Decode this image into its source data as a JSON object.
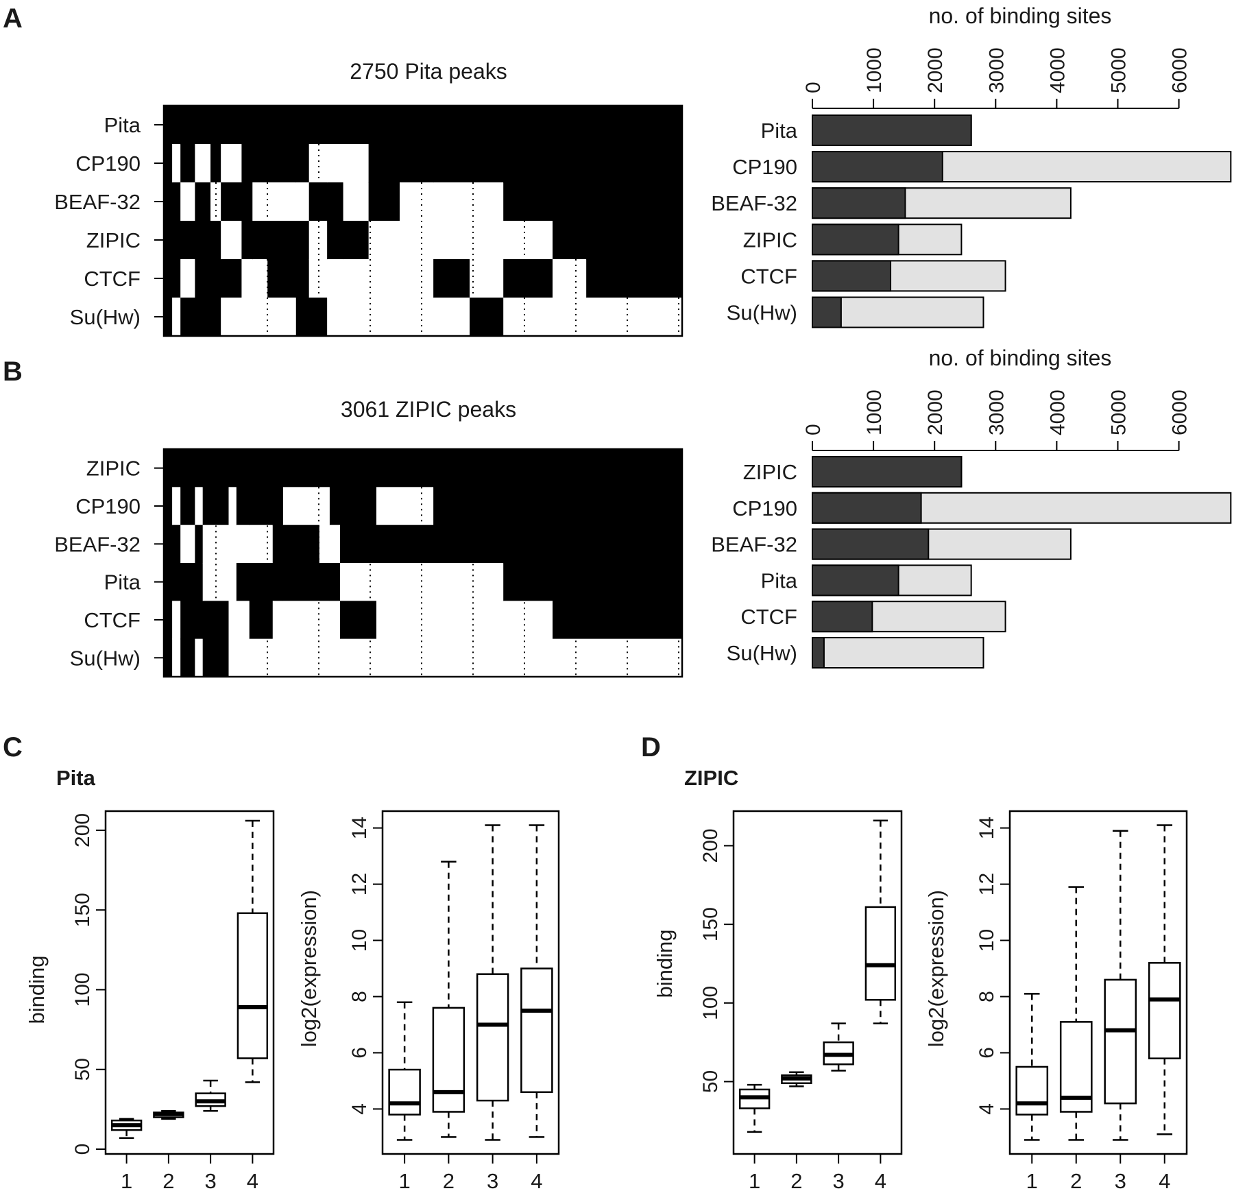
{
  "panels": {
    "A": {
      "label": "A",
      "heatmap_title": "2750 Pita peaks",
      "bar_axis_label": "no. of binding sites"
    },
    "B": {
      "label": "B",
      "heatmap_title": "3061 ZIPIC peaks",
      "bar_axis_label": "no. of binding sites"
    },
    "C": {
      "label": "C",
      "title": "Pita"
    },
    "D": {
      "label": "D",
      "title": "ZIPIC"
    }
  },
  "colors": {
    "overlap": "#3a3a3a",
    "total": "#e2e2e2",
    "heatmap_on": "#000000",
    "heatmap_off": "#ffffff"
  },
  "chart_data": [
    {
      "id": "A-heatmap",
      "type": "heatmap",
      "title": "2750 Pita peaks",
      "rows": [
        "Pita",
        "CP190",
        "BEAF-32",
        "ZIPIC",
        "CTCF",
        "Su(Hw)"
      ],
      "values": [
        0,
        1
      ],
      "column_blocks_fraction": [
        {
          "from": 0.0,
          "to": 0.016,
          "on": [
            1,
            1,
            1,
            1,
            1,
            1
          ]
        },
        {
          "from": 0.016,
          "to": 0.032,
          "on": [
            1,
            0,
            1,
            1,
            1,
            0
          ]
        },
        {
          "from": 0.032,
          "to": 0.06,
          "on": [
            1,
            1,
            0,
            1,
            0,
            1
          ]
        },
        {
          "from": 0.06,
          "to": 0.09,
          "on": [
            1,
            0,
            1,
            1,
            1,
            1
          ]
        },
        {
          "from": 0.09,
          "to": 0.11,
          "on": [
            1,
            1,
            0,
            1,
            1,
            1
          ]
        },
        {
          "from": 0.11,
          "to": 0.15,
          "on": [
            1,
            0,
            1,
            0,
            1,
            0
          ]
        },
        {
          "from": 0.15,
          "to": 0.171,
          "on": [
            1,
            1,
            1,
            1,
            0,
            0
          ]
        },
        {
          "from": 0.171,
          "to": 0.2,
          "on": [
            1,
            1,
            0,
            1,
            0,
            0
          ]
        },
        {
          "from": 0.2,
          "to": 0.255,
          "on": [
            1,
            1,
            0,
            1,
            1,
            0
          ]
        },
        {
          "from": 0.255,
          "to": 0.28,
          "on": [
            1,
            1,
            0,
            1,
            1,
            1
          ]
        },
        {
          "from": 0.28,
          "to": 0.315,
          "on": [
            1,
            0,
            1,
            0,
            0,
            1
          ]
        },
        {
          "from": 0.315,
          "to": 0.346,
          "on": [
            1,
            0,
            1,
            1,
            0,
            0
          ]
        },
        {
          "from": 0.346,
          "to": 0.395,
          "on": [
            1,
            0,
            0,
            1,
            0,
            0
          ]
        },
        {
          "from": 0.395,
          "to": 0.455,
          "on": [
            1,
            1,
            1,
            0,
            0,
            0
          ]
        },
        {
          "from": 0.455,
          "to": 0.52,
          "on": [
            1,
            1,
            0,
            0,
            0,
            0
          ]
        },
        {
          "from": 0.52,
          "to": 0.59,
          "on": [
            1,
            1,
            0,
            0,
            1,
            0
          ]
        },
        {
          "from": 0.59,
          "to": 0.655,
          "on": [
            1,
            1,
            0,
            0,
            0,
            1
          ]
        },
        {
          "from": 0.655,
          "to": 0.75,
          "on": [
            1,
            1,
            1,
            0,
            1,
            0
          ]
        },
        {
          "from": 0.75,
          "to": 0.815,
          "on": [
            1,
            1,
            1,
            1,
            0,
            0
          ]
        },
        {
          "from": 0.815,
          "to": 1.0,
          "on": [
            1,
            1,
            1,
            1,
            1,
            0
          ]
        }
      ]
    },
    {
      "id": "A-bars",
      "type": "bar",
      "orientation": "horizontal",
      "xlabel": "no. of binding sites",
      "xticks": [
        0,
        1000,
        2000,
        3000,
        4000,
        5000,
        6000
      ],
      "xlim": [
        0,
        6800
      ],
      "categories": [
        "Pita",
        "CP190",
        "BEAF-32",
        "ZIPIC",
        "CTCF",
        "Su(Hw)"
      ],
      "series": [
        {
          "values": [
            2600,
            2130,
            1520,
            1410,
            1280,
            470
          ]
        },
        {
          "values": [
            2600,
            6850,
            4230,
            2440,
            3160,
            2800
          ]
        }
      ]
    },
    {
      "id": "B-heatmap",
      "type": "heatmap",
      "title": "3061 ZIPIC peaks",
      "rows": [
        "ZIPIC",
        "CP190",
        "BEAF-32",
        "Pita",
        "CTCF",
        "Su(Hw)"
      ],
      "values": [
        0,
        1
      ],
      "column_blocks_fraction": [
        {
          "from": 0.0,
          "to": 0.016,
          "on": [
            1,
            1,
            1,
            1,
            1,
            1
          ]
        },
        {
          "from": 0.016,
          "to": 0.032,
          "on": [
            1,
            0,
            1,
            1,
            0,
            0
          ]
        },
        {
          "from": 0.032,
          "to": 0.06,
          "on": [
            1,
            1,
            0,
            1,
            1,
            1
          ]
        },
        {
          "from": 0.06,
          "to": 0.075,
          "on": [
            1,
            0,
            1,
            1,
            1,
            0
          ]
        },
        {
          "from": 0.075,
          "to": 0.125,
          "on": [
            1,
            1,
            0,
            0,
            1,
            1
          ]
        },
        {
          "from": 0.125,
          "to": 0.14,
          "on": [
            1,
            0,
            0,
            0,
            0,
            0
          ]
        },
        {
          "from": 0.14,
          "to": 0.165,
          "on": [
            1,
            1,
            0,
            1,
            0,
            0
          ]
        },
        {
          "from": 0.165,
          "to": 0.21,
          "on": [
            1,
            1,
            0,
            1,
            1,
            0
          ]
        },
        {
          "from": 0.21,
          "to": 0.23,
          "on": [
            1,
            1,
            1,
            1,
            0,
            0
          ]
        },
        {
          "from": 0.23,
          "to": 0.3,
          "on": [
            1,
            0,
            1,
            1,
            0,
            0
          ]
        },
        {
          "from": 0.3,
          "to": 0.32,
          "on": [
            1,
            0,
            0,
            1,
            0,
            0
          ]
        },
        {
          "from": 0.32,
          "to": 0.34,
          "on": [
            1,
            1,
            0,
            1,
            0,
            0
          ]
        },
        {
          "from": 0.34,
          "to": 0.41,
          "on": [
            1,
            1,
            1,
            0,
            1,
            0
          ]
        },
        {
          "from": 0.41,
          "to": 0.52,
          "on": [
            1,
            0,
            1,
            0,
            0,
            0
          ]
        },
        {
          "from": 0.52,
          "to": 0.655,
          "on": [
            1,
            1,
            1,
            0,
            0,
            0
          ]
        },
        {
          "from": 0.655,
          "to": 0.75,
          "on": [
            1,
            1,
            1,
            1,
            0,
            0
          ]
        },
        {
          "from": 0.75,
          "to": 1.0,
          "on": [
            1,
            1,
            1,
            1,
            1,
            0
          ]
        }
      ]
    },
    {
      "id": "B-bars",
      "type": "bar",
      "orientation": "horizontal",
      "xlabel": "no. of binding sites",
      "xticks": [
        0,
        1000,
        2000,
        3000,
        4000,
        5000,
        6000
      ],
      "xlim": [
        0,
        6800
      ],
      "categories": [
        "ZIPIC",
        "CP190",
        "BEAF-32",
        "Pita",
        "CTCF",
        "Su(Hw)"
      ],
      "series": [
        {
          "values": [
            2440,
            1780,
            1900,
            1410,
            980,
            190
          ]
        },
        {
          "values": [
            2440,
            6850,
            4230,
            2600,
            3160,
            2800
          ]
        }
      ]
    },
    {
      "id": "C-binding",
      "type": "boxplot",
      "title": "Pita",
      "ylabel": "binding",
      "categories": [
        "1",
        "2",
        "3",
        "4"
      ],
      "yticks": [
        0,
        50,
        100,
        150,
        200
      ],
      "ylim": [
        -3,
        212
      ],
      "boxes": [
        {
          "lo": 7,
          "q1": 12,
          "med": 15,
          "q3": 18,
          "hi": 19
        },
        {
          "lo": 19,
          "q1": 20,
          "med": 22,
          "q3": 23,
          "hi": 24
        },
        {
          "lo": 24,
          "q1": 27,
          "med": 30,
          "q3": 35,
          "hi": 43
        },
        {
          "lo": 42,
          "q1": 57,
          "med": 89,
          "q3": 148,
          "hi": 206
        }
      ]
    },
    {
      "id": "C-expression",
      "type": "boxplot",
      "ylabel": "log2(expression)",
      "categories": [
        "1",
        "2",
        "3",
        "4"
      ],
      "yticks": [
        4,
        6,
        8,
        10,
        12,
        14
      ],
      "ylim": [
        2.4,
        14.6
      ],
      "boxes": [
        {
          "lo": 2.9,
          "q1": 3.8,
          "med": 4.2,
          "q3": 5.4,
          "hi": 7.8
        },
        {
          "lo": 3.0,
          "q1": 3.9,
          "med": 4.6,
          "q3": 7.6,
          "hi": 12.8
        },
        {
          "lo": 2.9,
          "q1": 4.3,
          "med": 7.0,
          "q3": 8.8,
          "hi": 14.1
        },
        {
          "lo": 3.0,
          "q1": 4.6,
          "med": 7.5,
          "q3": 9.0,
          "hi": 14.1
        }
      ]
    },
    {
      "id": "D-binding",
      "type": "boxplot",
      "title": "ZIPIC",
      "ylabel": "binding",
      "categories": [
        "1",
        "2",
        "3",
        "4"
      ],
      "yticks": [
        50,
        100,
        150,
        200
      ],
      "ylim": [
        4,
        222
      ],
      "boxes": [
        {
          "lo": 18,
          "q1": 33,
          "med": 40,
          "q3": 45,
          "hi": 48
        },
        {
          "lo": 47,
          "q1": 49,
          "med": 52,
          "q3": 54,
          "hi": 56
        },
        {
          "lo": 57,
          "q1": 61,
          "med": 67,
          "q3": 75,
          "hi": 87
        },
        {
          "lo": 87,
          "q1": 102,
          "med": 124,
          "q3": 161,
          "hi": 216
        }
      ]
    },
    {
      "id": "D-expression",
      "type": "boxplot",
      "ylabel": "log2(expression)",
      "categories": [
        "1",
        "2",
        "3",
        "4"
      ],
      "yticks": [
        4,
        6,
        8,
        10,
        12,
        14
      ],
      "ylim": [
        2.4,
        14.6
      ],
      "boxes": [
        {
          "lo": 2.9,
          "q1": 3.8,
          "med": 4.2,
          "q3": 5.5,
          "hi": 8.1
        },
        {
          "lo": 2.9,
          "q1": 3.9,
          "med": 4.4,
          "q3": 7.1,
          "hi": 11.9
        },
        {
          "lo": 2.9,
          "q1": 4.2,
          "med": 6.8,
          "q3": 8.6,
          "hi": 13.9
        },
        {
          "lo": 3.1,
          "q1": 5.8,
          "med": 7.9,
          "q3": 9.2,
          "hi": 14.1
        }
      ]
    }
  ]
}
